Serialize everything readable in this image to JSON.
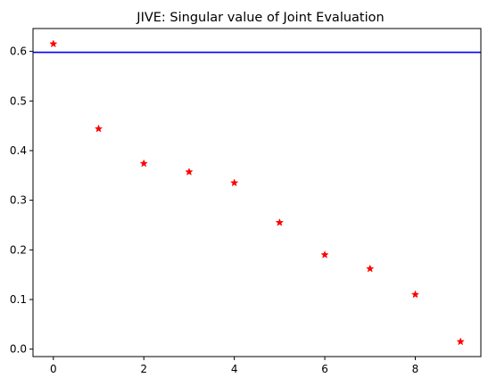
{
  "chart_data": {
    "type": "scatter",
    "title": "JIVE: Singular value of Joint Evaluation",
    "xlabel": "",
    "ylabel": "",
    "xlim": [
      -0.45,
      9.45
    ],
    "ylim": [
      -0.015,
      0.646
    ],
    "x_ticks": [
      0,
      2,
      4,
      6,
      8
    ],
    "y_ticks": [
      0.0,
      0.1,
      0.2,
      0.3,
      0.4,
      0.5,
      0.6
    ],
    "y_tick_labels": [
      "0.0",
      "0.1",
      "0.2",
      "0.3",
      "0.4",
      "0.5",
      "0.6"
    ],
    "x_tick_labels": [
      "0",
      "2",
      "4",
      "6",
      "8"
    ],
    "series": [
      {
        "marker": "star",
        "color": "#ff0000",
        "x": [
          0,
          1,
          2,
          3,
          4,
          5,
          6,
          7,
          8,
          9
        ],
        "y": [
          0.615,
          0.444,
          0.374,
          0.357,
          0.335,
          0.255,
          0.19,
          0.162,
          0.11,
          0.015
        ]
      }
    ],
    "hline": {
      "y": 0.598,
      "color": "#0000ff"
    },
    "grid": false,
    "legend": false
  }
}
